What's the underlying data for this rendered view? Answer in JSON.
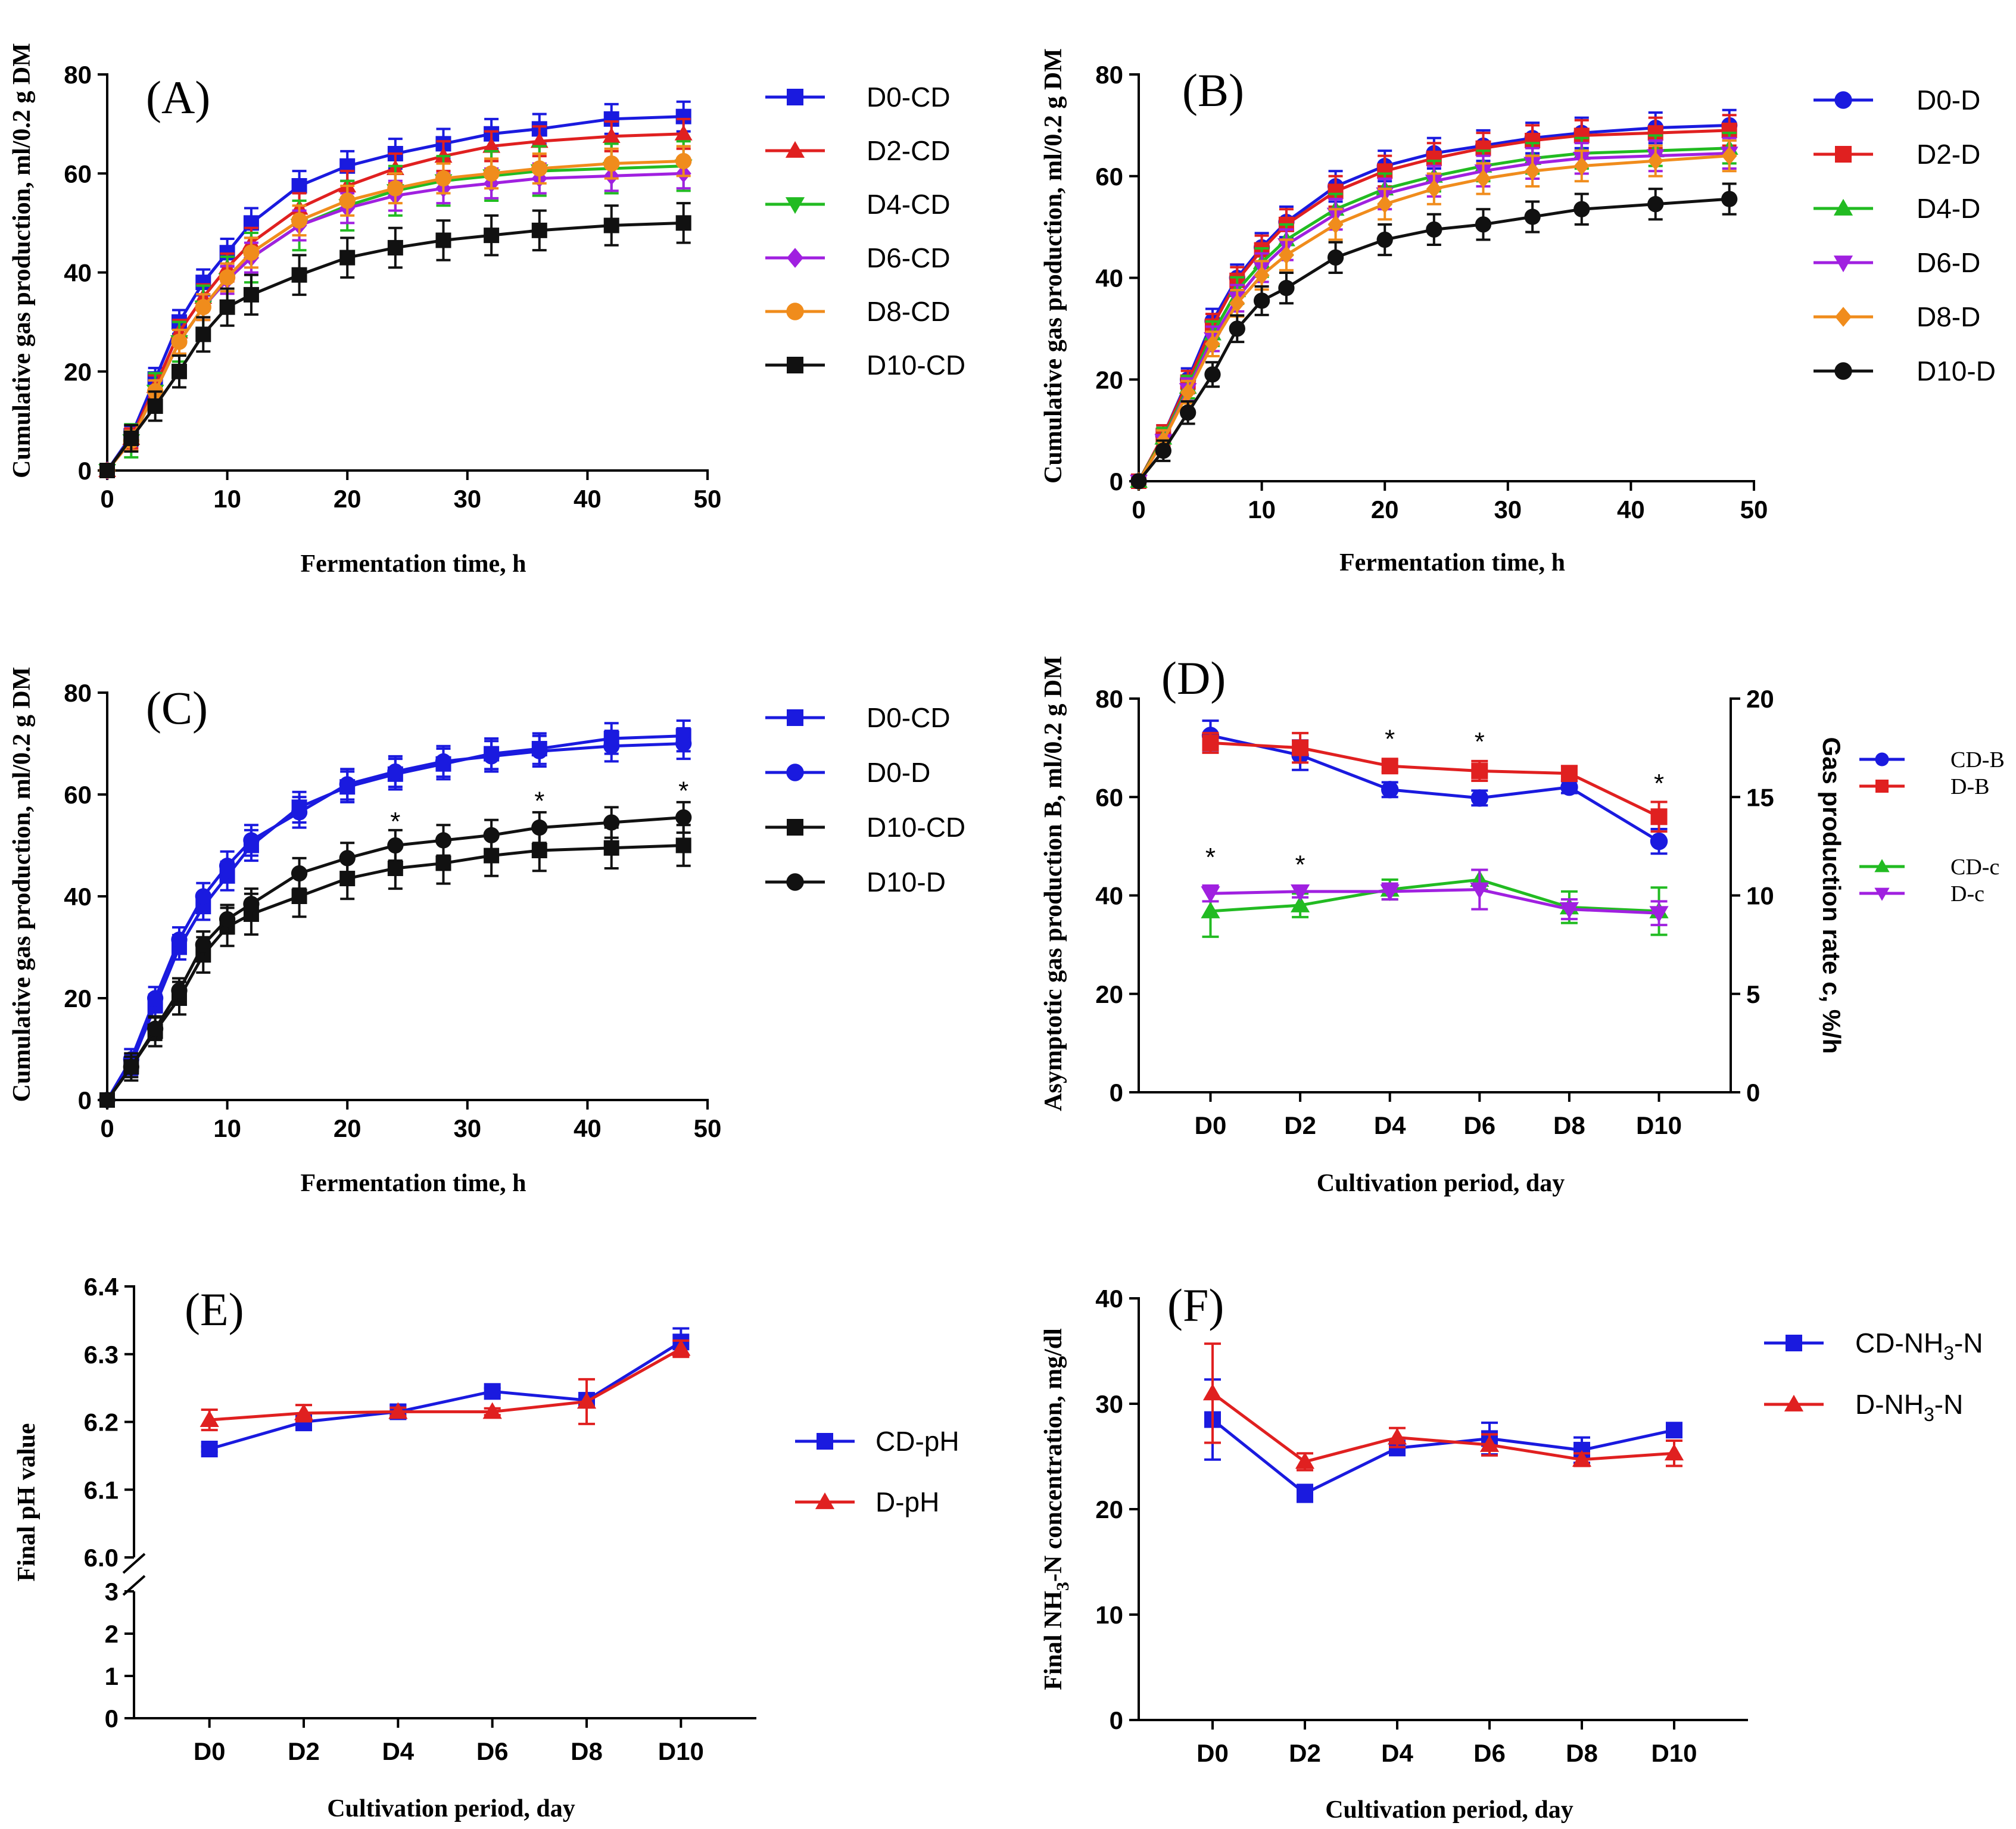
{
  "chart_data": [
    {
      "id": "A",
      "type": "line",
      "panel_label": "(A)",
      "xlabel": "Fermentation time, h",
      "ylabel": "Cumulative gas production, ml/0.2 g DM",
      "xlim": [
        0,
        50
      ],
      "ylim": [
        0,
        80
      ],
      "xticks": [
        0,
        10,
        20,
        30,
        40,
        50
      ],
      "yticks": [
        0,
        20,
        40,
        60,
        80
      ],
      "x": [
        0,
        2,
        4,
        6,
        8,
        10,
        12,
        16,
        20,
        24,
        28,
        32,
        36,
        42,
        48
      ],
      "series": [
        {
          "name": "D0-CD",
          "color": "#1a1adf",
          "marker": "square",
          "err": 3,
          "values": [
            0,
            7,
            18.5,
            30,
            38,
            44,
            50,
            57.5,
            61.5,
            64,
            66,
            68,
            69,
            71,
            71.5
          ]
        },
        {
          "name": "D2-CD",
          "color": "#e02020",
          "marker": "triangle-up",
          "err": 3,
          "values": [
            0,
            6.5,
            17,
            28,
            35,
            41,
            46,
            53,
            57.5,
            61,
            63.5,
            65.5,
            66.5,
            67.5,
            68
          ]
        },
        {
          "name": "D4-CD",
          "color": "#22bb22",
          "marker": "triangle-down",
          "err": 5,
          "values": [
            0,
            6,
            16,
            26,
            33,
            38.5,
            43,
            49.5,
            53.5,
            56.5,
            58.5,
            59.5,
            60.5,
            61,
            61.5
          ]
        },
        {
          "name": "D6-CD",
          "color": "#a020e0",
          "marker": "diamond",
          "err": 3,
          "values": [
            0,
            6,
            16,
            26,
            33,
            38.5,
            43,
            49.5,
            53,
            55.5,
            57,
            58,
            59,
            59.5,
            60
          ]
        },
        {
          "name": "D8-CD",
          "color": "#f08c1c",
          "marker": "circle",
          "err": 3,
          "values": [
            0,
            6,
            16,
            26,
            33,
            39,
            44,
            50.5,
            54.5,
            57,
            59,
            60,
            61,
            62,
            62.5
          ]
        },
        {
          "name": "D10-CD",
          "color": "#111111",
          "marker": "square",
          "err": 4,
          "values": [
            0,
            6.5,
            13,
            20,
            27.5,
            33,
            35.5,
            39.5,
            43,
            45,
            46.5,
            47.5,
            48.5,
            49.5,
            50
          ]
        }
      ],
      "annotations": []
    },
    {
      "id": "B",
      "type": "line",
      "panel_label": "(B)",
      "xlabel": "Fermentation time, h",
      "ylabel": "Cumulative gas production, ml/0.2 g DM",
      "xlim": [
        0,
        50
      ],
      "ylim": [
        0,
        80
      ],
      "xticks": [
        0,
        10,
        20,
        30,
        40,
        50
      ],
      "yticks": [
        0,
        20,
        40,
        60,
        80
      ],
      "x": [
        0,
        2,
        4,
        6,
        8,
        10,
        12,
        16,
        20,
        24,
        28,
        32,
        36,
        42,
        48
      ],
      "series": [
        {
          "name": "D0-D",
          "color": "#1a1adf",
          "marker": "circle",
          "err": 3,
          "values": [
            0,
            9,
            20,
            31.5,
            40,
            46,
            51,
            58,
            62,
            64.5,
            66,
            67.5,
            68.5,
            69.5,
            70
          ]
        },
        {
          "name": "D2-D",
          "color": "#e02020",
          "marker": "square",
          "err": 3,
          "values": [
            0,
            9,
            19.5,
            30.5,
            39.5,
            45.5,
            50.5,
            57,
            61,
            63.5,
            65.5,
            67,
            68,
            68.5,
            69
          ]
        },
        {
          "name": "D4-D",
          "color": "#22bb22",
          "marker": "triangle-up",
          "err": 3,
          "values": [
            0,
            8.5,
            18.5,
            29,
            37.5,
            43,
            47.5,
            53.5,
            57.5,
            60,
            62,
            63.5,
            64.5,
            65,
            65.5
          ]
        },
        {
          "name": "D6-D",
          "color": "#a020e0",
          "marker": "triangle-down",
          "err": 3,
          "values": [
            0,
            8,
            18,
            28,
            36,
            42,
            46.5,
            52.5,
            56.5,
            59,
            61,
            62.5,
            63.5,
            64,
            64.5
          ]
        },
        {
          "name": "D8-D",
          "color": "#f08c1c",
          "marker": "diamond",
          "err": 3,
          "values": [
            0,
            8,
            17.5,
            27,
            35,
            40.5,
            44.5,
            50.5,
            54.5,
            57.5,
            59.5,
            61,
            62,
            63,
            64
          ]
        },
        {
          "name": "D10-D",
          "color": "#111111",
          "marker": "circle",
          "err": 3,
          "values": [
            0,
            6,
            13.5,
            21,
            30,
            35.5,
            38,
            44,
            47.5,
            49.5,
            50.5,
            52,
            53.5,
            54.5,
            55.5
          ]
        }
      ],
      "annotations": []
    },
    {
      "id": "C",
      "type": "line",
      "panel_label": "(C)",
      "xlabel": "Fermentation time, h",
      "ylabel": "Cumulative gas production, ml/0.2 g DM",
      "xlim": [
        0,
        50
      ],
      "ylim": [
        0,
        80
      ],
      "xticks": [
        0,
        10,
        20,
        30,
        40,
        50
      ],
      "yticks": [
        0,
        20,
        40,
        60,
        80
      ],
      "x": [
        0,
        2,
        4,
        6,
        8,
        10,
        12,
        16,
        20,
        24,
        28,
        32,
        36,
        42,
        48
      ],
      "series": [
        {
          "name": "D0-CD",
          "color": "#1a1adf",
          "marker": "square",
          "err": 3,
          "values": [
            0,
            7,
            18.5,
            30,
            38,
            44,
            50,
            57.5,
            61.5,
            64,
            66,
            68,
            69,
            71,
            71.5
          ]
        },
        {
          "name": "D0-D",
          "color": "#1a1adf",
          "marker": "circle",
          "err": 3,
          "values": [
            0,
            8,
            20,
            31.5,
            40,
            46,
            51,
            56.5,
            62,
            64.5,
            66.5,
            67.5,
            68.5,
            69.5,
            70
          ]
        },
        {
          "name": "D10-CD",
          "color": "#111111",
          "marker": "square",
          "err": 4,
          "values": [
            0,
            6.5,
            13.5,
            20,
            28.5,
            34,
            36.5,
            40,
            43.5,
            45.5,
            46.5,
            48,
            49,
            49.5,
            50
          ]
        },
        {
          "name": "D10-D",
          "color": "#111111",
          "marker": "circle",
          "err": 3,
          "values": [
            0,
            6.5,
            14,
            21.5,
            30.5,
            35.5,
            38.5,
            44.5,
            47.5,
            50,
            51,
            52,
            53.5,
            54.5,
            55.5
          ]
        }
      ],
      "annotations": [
        {
          "text": "*",
          "x": 24,
          "y": 53
        },
        {
          "text": "*",
          "x": 36,
          "y": 57
        },
        {
          "text": "*",
          "x": 48,
          "y": 59
        }
      ]
    },
    {
      "id": "D",
      "type": "line",
      "panel_label": "(D)",
      "xlabel": "Cultivation period, day",
      "ylabel": "Asymptotic gas production B, ml/0.2 g DM",
      "ylabel_right": "Gas production rate c, %/h",
      "categories": [
        "D0",
        "D2",
        "D4",
        "D6",
        "D8",
        "D10"
      ],
      "ylim": [
        0,
        80
      ],
      "yticks": [
        0,
        20,
        40,
        60,
        80
      ],
      "ylim_right": [
        0,
        20
      ],
      "yticks_right": [
        0,
        5,
        10,
        15,
        20
      ],
      "series": [
        {
          "name": "CD-B",
          "color": "#1a1adf",
          "marker": "circle",
          "axis": "left",
          "values": [
            72.5,
            68.5,
            61.5,
            59.8,
            62,
            51
          ],
          "errors": [
            3,
            3,
            1.5,
            1.5,
            1.2,
            2.5
          ]
        },
        {
          "name": "D-B",
          "color": "#e02020",
          "marker": "square",
          "axis": "left",
          "values": [
            71,
            70,
            66.3,
            65.3,
            64.8,
            56
          ],
          "errors": [
            2,
            3,
            1.2,
            2,
            1.5,
            3
          ]
        },
        {
          "name": "CD-c",
          "color": "#22bb22",
          "marker": "triangle-up",
          "axis": "right",
          "values": [
            9.2,
            9.5,
            10.3,
            10.8,
            9.4,
            9.2
          ],
          "errors": [
            1.3,
            0.6,
            0.5,
            0.5,
            0.8,
            1.2
          ]
        },
        {
          "name": "D-c",
          "color": "#a020e0",
          "marker": "triangle-down",
          "axis": "right",
          "values": [
            10.1,
            10.2,
            10.2,
            10.3,
            9.3,
            9.1
          ],
          "errors": [
            0.4,
            0.3,
            0.4,
            1.0,
            0.5,
            0.6
          ]
        }
      ],
      "annotations": [
        {
          "text": "*",
          "cat": 0,
          "y": 46
        },
        {
          "text": "*",
          "cat": 1,
          "y": 44.5
        },
        {
          "text": "*",
          "cat": 2,
          "y": 70
        },
        {
          "text": "*",
          "cat": 3,
          "y": 69.5
        },
        {
          "text": "*",
          "cat": 5,
          "y": 61
        }
      ]
    },
    {
      "id": "E",
      "type": "line",
      "panel_label": "(E)",
      "xlabel": "Cultivation period, day",
      "ylabel": "Final pH value",
      "categories": [
        "D0",
        "D2",
        "D4",
        "D6",
        "D8",
        "D10"
      ],
      "y_upper_range": [
        6.0,
        6.4
      ],
      "y_upper_ticks": [
        "6.0",
        "6.1",
        "6.2",
        "6.3",
        "6.4"
      ],
      "y_lower_range": [
        0,
        3
      ],
      "y_lower_ticks": [
        "0",
        "1",
        "2",
        "3"
      ],
      "axis_break": true,
      "series": [
        {
          "name": "CD-pH",
          "color": "#1a1adf",
          "marker": "square",
          "values": [
            6.16,
            6.2,
            6.215,
            6.245,
            6.232,
            6.318
          ],
          "errors": [
            0.004,
            0.012,
            0.01,
            0.005,
            0.01,
            0.02
          ]
        },
        {
          "name": "D-pH",
          "color": "#e02020",
          "marker": "triangle-up",
          "values": [
            6.203,
            6.213,
            6.215,
            6.215,
            6.23,
            6.308
          ],
          "errors": [
            0.015,
            0.012,
            0.006,
            0.005,
            0.033,
            0.012
          ]
        }
      ],
      "annotations": []
    },
    {
      "id": "F",
      "type": "line",
      "panel_label": "(F)",
      "xlabel": "Cultivation period, day",
      "ylabel": "Final NH3-N concentration, mg/dl",
      "categories": [
        "D0",
        "D2",
        "D4",
        "D6",
        "D8",
        "D10"
      ],
      "ylim": [
        0,
        40
      ],
      "yticks": [
        0,
        10,
        20,
        30,
        40
      ],
      "series": [
        {
          "name": "CD-NH3-N",
          "color": "#1a1adf",
          "marker": "square",
          "values": [
            28.5,
            21.5,
            25.8,
            26.7,
            25.6,
            27.5
          ],
          "errors": [
            3.8,
            0.8,
            0.5,
            1.5,
            1.2,
            0.6
          ]
        },
        {
          "name": "D-NH3-N",
          "color": "#e02020",
          "marker": "triangle-up",
          "values": [
            31,
            24.5,
            26.8,
            26.1,
            24.7,
            25.3
          ],
          "errors": [
            4.7,
            0.8,
            0.9,
            1,
            0.6,
            1.2
          ]
        }
      ],
      "annotations": []
    }
  ],
  "legend_labels": {
    "A": [
      "D0-CD",
      "D2-CD",
      "D4-CD",
      "D6-CD",
      "D8-CD",
      "D10-CD"
    ],
    "B": [
      "D0-D",
      "D2-D",
      "D4-D",
      "D6-D",
      "D8-D",
      "D10-D"
    ],
    "C": [
      "D0-CD",
      "D0-D",
      "D10-CD",
      "D10-D"
    ],
    "D": [
      "CD-B",
      "D-B",
      "CD-c",
      "D-c"
    ],
    "E": [
      "CD-pH",
      "D-pH"
    ],
    "F_prefix": [
      "CD-NH",
      "D-NH"
    ],
    "F_sub": "3",
    "F_suffix": "-N"
  },
  "ylabel_F_parts": {
    "pre": "Final NH",
    "sub": "3",
    "post": "-N concentration, mg/dl"
  }
}
